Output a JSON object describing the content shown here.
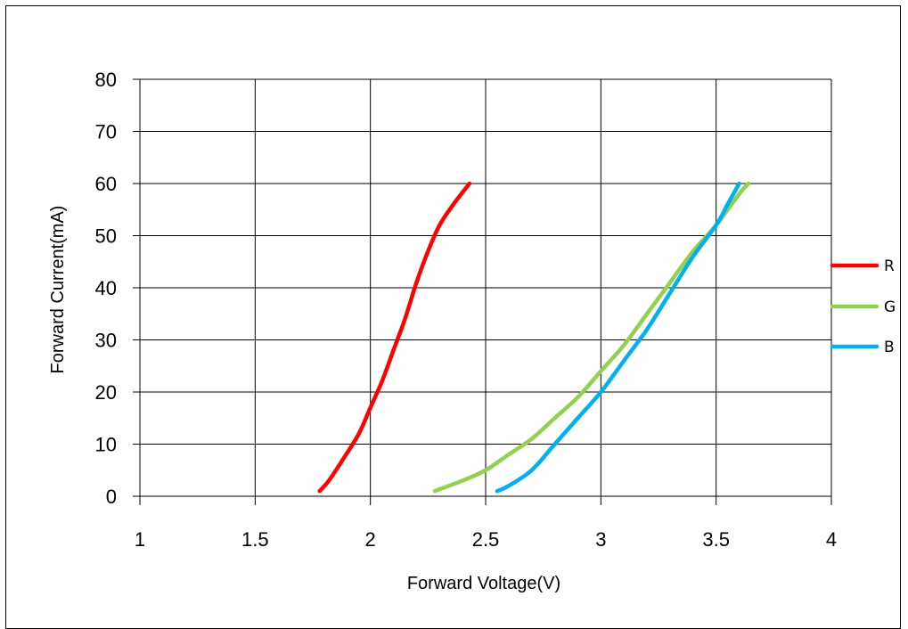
{
  "chart_data": {
    "type": "line",
    "xlabel": "Forward Voltage(V)",
    "ylabel": "Forward Current(mA)",
    "xlim": [
      1,
      4
    ],
    "ylim": [
      0,
      80
    ],
    "x_ticks": [
      "1",
      "1.5",
      "2",
      "2.5",
      "3",
      "3.5",
      "4"
    ],
    "y_ticks": [
      "0",
      "10",
      "20",
      "30",
      "40",
      "50",
      "60",
      "70",
      "80"
    ],
    "grid": true,
    "legend_position": "right",
    "series": [
      {
        "name": "R",
        "color": "#ff0000",
        "points": [
          [
            1.78,
            1
          ],
          [
            1.82,
            3
          ],
          [
            1.88,
            7
          ],
          [
            1.95,
            12
          ],
          [
            2.0,
            17
          ],
          [
            2.05,
            22
          ],
          [
            2.1,
            28
          ],
          [
            2.15,
            34
          ],
          [
            2.2,
            41
          ],
          [
            2.25,
            47
          ],
          [
            2.3,
            52
          ],
          [
            2.36,
            56
          ],
          [
            2.43,
            60
          ]
        ]
      },
      {
        "name": "G",
        "color": "#92d050",
        "points": [
          [
            2.28,
            1
          ],
          [
            2.4,
            3
          ],
          [
            2.5,
            5
          ],
          [
            2.6,
            8
          ],
          [
            2.7,
            11
          ],
          [
            2.8,
            15
          ],
          [
            2.9,
            19
          ],
          [
            3.0,
            24
          ],
          [
            3.1,
            29
          ],
          [
            3.2,
            35
          ],
          [
            3.3,
            41
          ],
          [
            3.4,
            47
          ],
          [
            3.5,
            52
          ],
          [
            3.6,
            58
          ],
          [
            3.64,
            60
          ]
        ]
      },
      {
        "name": "B",
        "color": "#00b0f0",
        "points": [
          [
            2.55,
            1
          ],
          [
            2.6,
            2
          ],
          [
            2.7,
            5
          ],
          [
            2.8,
            10
          ],
          [
            2.9,
            15
          ],
          [
            3.0,
            20
          ],
          [
            3.1,
            26
          ],
          [
            3.2,
            32
          ],
          [
            3.3,
            39
          ],
          [
            3.4,
            46
          ],
          [
            3.5,
            52
          ],
          [
            3.55,
            56
          ],
          [
            3.6,
            60
          ]
        ]
      }
    ]
  }
}
